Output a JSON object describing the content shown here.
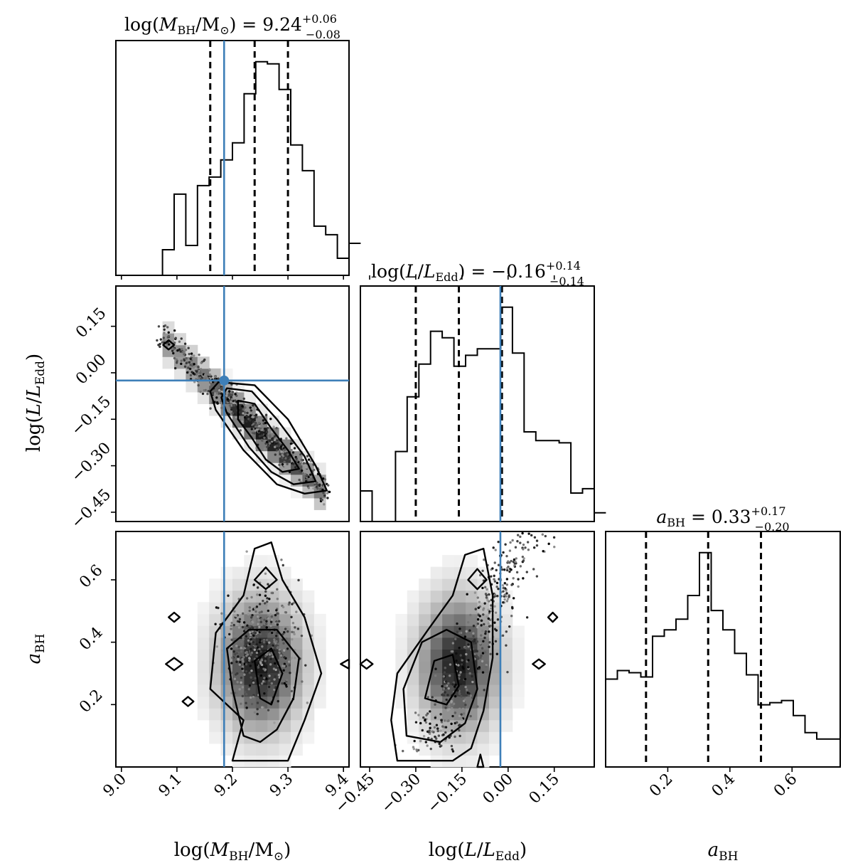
{
  "chart_data": {
    "type": "corner",
    "parameters": [
      "log(M_BH/M_sun)",
      "log(L/L_Edd)",
      "a_BH"
    ],
    "axis_labels": {
      "mass": {
        "pre": "log(",
        "var": "M",
        "sub": "BH",
        "mid": "/M",
        "post": ")",
        "sym": "⊙"
      },
      "lum": {
        "pre": "log(",
        "var": "L",
        "mid": "/",
        "var2": "L",
        "sub": "Edd",
        "post": ")"
      },
      "spin": {
        "var": "a",
        "sub": "BH"
      }
    },
    "titles": {
      "mass": {
        "pre": "log(",
        "var": "M",
        "sub": "BH",
        "mid": "/M",
        "sym": "⊙",
        "post": ") = ",
        "value": "9.24",
        "plus": "+0.06",
        "minus": "−0.08"
      },
      "lum": {
        "pre": "log(",
        "var": "L",
        "mid": "/",
        "var2": "L",
        "sub": "Edd",
        "post": ") = ",
        "value": "−0.16",
        "plus": "+0.14",
        "minus": "−0.14"
      },
      "spin": {
        "var": "a",
        "sub": "BH",
        "post": " = ",
        "value": "0.33",
        "plus": "+0.17",
        "minus": "−0.20"
      }
    },
    "ranges": {
      "mass": [
        8.99,
        9.41
      ],
      "lum": [
        -0.48,
        0.28
      ],
      "spin": [
        0.0,
        0.755
      ]
    },
    "ticks": {
      "mass": {
        "values": [
          9.0,
          9.1,
          9.2,
          9.3,
          9.4
        ],
        "labels": [
          "9.0",
          "9.1",
          "9.2",
          "9.3",
          "9.4"
        ]
      },
      "lum": {
        "values": [
          -0.45,
          -0.3,
          -0.15,
          0.0,
          0.15
        ],
        "labels": [
          "−0.45",
          "−0.30",
          "−0.15",
          "0.00",
          "0.15"
        ]
      },
      "spin": {
        "values": [
          0.2,
          0.4,
          0.6
        ],
        "labels": [
          "0.2",
          "0.4",
          "0.6"
        ]
      }
    },
    "truth": {
      "mass": 9.185,
      "lum": -0.025
    },
    "quantiles": {
      "mass": [
        9.16,
        9.24,
        9.3
      ],
      "lum": [
        -0.3,
        -0.16,
        -0.02
      ],
      "spin": [
        0.13,
        0.33,
        0.5
      ]
    },
    "histograms": {
      "mass": {
        "edges_start": 8.99,
        "bin_width": 0.021,
        "counts": [
          0,
          0,
          0,
          0,
          0.12,
          0.38,
          0.14,
          0.42,
          0.46,
          0.54,
          0.62,
          0.85,
          1.0,
          0.99,
          0.87,
          0.61,
          0.49,
          0.23,
          0.19,
          0.08,
          0.15
        ]
      },
      "lum": {
        "edges_start": -0.48,
        "bin_width": 0.038,
        "counts": [
          0.14,
          0,
          0,
          0.32,
          0.57,
          0.72,
          0.87,
          0.84,
          0.71,
          0.76,
          0.79,
          0.79,
          0.98,
          0.77,
          0.41,
          0.37,
          0.37,
          0.36,
          0.13,
          0.15,
          0.04
        ]
      },
      "spin": {
        "edges_start": 0.0,
        "bin_width": 0.03775,
        "counts": [
          0.41,
          0.45,
          0.44,
          0.42,
          0.61,
          0.64,
          0.69,
          0.8,
          1.0,
          0.73,
          0.64,
          0.53,
          0.43,
          0.29,
          0.3,
          0.31,
          0.24,
          0.16,
          0.13,
          0.13
        ]
      }
    }
  }
}
